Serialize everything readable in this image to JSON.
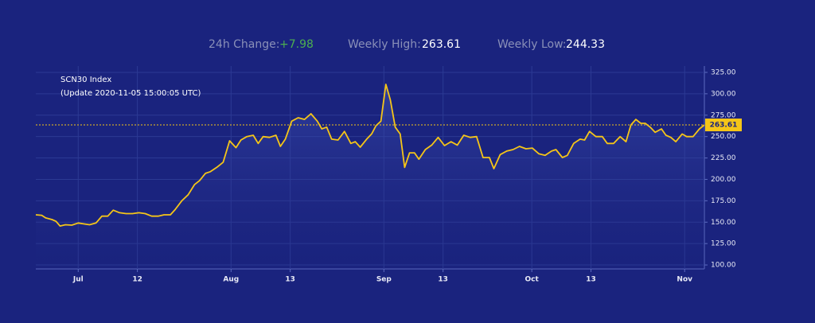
{
  "stats": {
    "change_label": "24h Change:",
    "change": "+7.98",
    "high_label": "Weekly High:",
    "high": "263.61",
    "low_label": "Weekly Low:",
    "low": "244.33"
  },
  "chart_data": {
    "type": "line",
    "title": "SCN30 Index",
    "subtitle": "(Update 2020-11-05 15:00:05 UTC)",
    "current_value": 263.61,
    "current_label": "263.61",
    "x": [
      -8.6,
      -7.4,
      -6.6,
      -5.3,
      -4.5,
      -3.7,
      -2.6,
      -1.3,
      0,
      1.1,
      2.3,
      3.6,
      4.8,
      6.0,
      7.1,
      8.4,
      9.7,
      11.0,
      12.3,
      13.6,
      14.9,
      16.2,
      17.4,
      18.7,
      19.7,
      21.0,
      22.3,
      23.6,
      24.6,
      25.8,
      26.8,
      28.1,
      29.4,
      30.7,
      32.0,
      33.0,
      34.2,
      35.5,
      36.5,
      37.5,
      38.8,
      40.1,
      41.0,
      42.0,
      43.3,
      44.6,
      45.9,
      47.2,
      48.5,
      49.4,
      50.4,
      51.4,
      52.7,
      54.0,
      55.3,
      56.2,
      57.2,
      58.5,
      59.5,
      60.4,
      61.4,
      62.4,
      63.3,
      64.3,
      65.3,
      66.2,
      67.2,
      68.2,
      69.1,
      70.4,
      71.7,
      73.0,
      74.3,
      75.6,
      76.9,
      78.2,
      79.5,
      80.8,
      82.1,
      83.4,
      84.3,
      85.6,
      86.9,
      88.2,
      89.5,
      90.8,
      92.1,
      93.4,
      94.7,
      96.0,
      96.9,
      98.2,
      99.2,
      100.5,
      101.8,
      102.7,
      103.7,
      105.0,
      106.3,
      107.3,
      108.6,
      109.9,
      111.1,
      112.1,
      113.1,
      114.1,
      115.0,
      116.0,
      117.0,
      118.3,
      119.2,
      120.2,
      121.2,
      122.5,
      123.4,
      124.7,
      126.0,
      127.0
    ],
    "series": [
      {
        "name": "SCN30 Index",
        "color": "#f5c518",
        "values": [
          158.6,
          158,
          155,
          153,
          151,
          145.5,
          147,
          146.5,
          149,
          148,
          147,
          149,
          157,
          157,
          164,
          161,
          160,
          160,
          161,
          160,
          157,
          157,
          158.6,
          158.6,
          165,
          175,
          182,
          194,
          198.5,
          207,
          209,
          214,
          220,
          245,
          237,
          246,
          250,
          251.5,
          242,
          250,
          249,
          251.5,
          238.5,
          247,
          268,
          272,
          270,
          276.6,
          268,
          259,
          261,
          247,
          246,
          256,
          242,
          244,
          237.6,
          247,
          253,
          262.7,
          268,
          311,
          293,
          261,
          253,
          214,
          231,
          231,
          223.6,
          234.8,
          240,
          249,
          239.5,
          244,
          240,
          251.5,
          249,
          250,
          225.5,
          225.5,
          212.5,
          229,
          233,
          234.8,
          238.5,
          235.7,
          236.6,
          230,
          228,
          233,
          234.8,
          225.5,
          228,
          242,
          247,
          246,
          256,
          250,
          250,
          242,
          242,
          250,
          244,
          263.6,
          270,
          265.5,
          265.5,
          261,
          255,
          259,
          251.5,
          249,
          244,
          253,
          250,
          250,
          259,
          263.6
        ]
      }
    ],
    "xlim": [
      -8.6,
      127.0
    ],
    "xticks": [
      {
        "value": 0,
        "label": "Jul"
      },
      12,
      {
        "value": 31,
        "label": "Aug"
      },
      {
        "value": 43,
        "label": "13"
      },
      {
        "value": 62,
        "label": "Sep"
      },
      {
        "value": 74,
        "label": "13"
      },
      {
        "value": 92,
        "label": "Oct"
      },
      {
        "value": 104,
        "label": "13"
      },
      {
        "value": 123,
        "label": "Nov"
      }
    ],
    "ylim": [
      95.4,
      332.4
    ],
    "yticks": [
      {
        "value": 100,
        "label": "100.00"
      },
      {
        "value": 125,
        "label": "125.00"
      },
      {
        "value": 150,
        "label": "150.00"
      },
      {
        "value": 175,
        "label": "175.00"
      },
      {
        "value": 200,
        "label": "200.00"
      },
      {
        "value": 225,
        "label": "225.00"
      },
      {
        "value": 250,
        "label": "250.00"
      },
      {
        "value": 275,
        "label": "275.00"
      },
      {
        "value": 300,
        "label": "300.00"
      },
      {
        "value": 325,
        "label": "325.00"
      }
    ],
    "grid": true
  }
}
